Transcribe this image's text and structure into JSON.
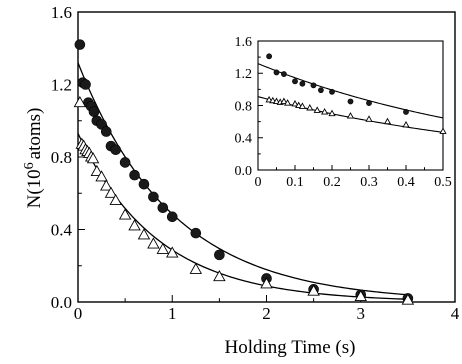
{
  "chart_data": [
    {
      "type": "scatter",
      "xlabel": "Holding Time (s)",
      "ylabel": "N(10",
      "ylabel_superscript": "6",
      "ylabel_unit": "atoms)",
      "xlim": [
        0,
        4
      ],
      "ylim": [
        0,
        1.6
      ],
      "xticks": [
        0,
        1,
        2,
        3,
        4
      ],
      "xtick_labels": [
        "0",
        "1",
        "2",
        "3",
        "4"
      ],
      "yticks": [
        0,
        0.4,
        0.8,
        1.2,
        1.6
      ],
      "ytick_labels": [
        "0.0",
        "0.4",
        "0.8",
        "1.2",
        "1.6"
      ],
      "grid": false,
      "series": [
        {
          "marker": "filled-circle",
          "x": [
            0.02,
            0.05,
            0.08,
            0.11,
            0.14,
            0.17,
            0.2,
            0.25,
            0.3,
            0.35,
            0.4,
            0.5,
            0.6,
            0.7,
            0.8,
            0.9,
            1.0,
            1.25,
            1.5,
            2.0,
            2.5,
            3.0,
            3.5
          ],
          "y": [
            1.42,
            1.21,
            1.2,
            1.1,
            1.08,
            1.05,
            1.0,
            0.98,
            0.94,
            0.86,
            0.84,
            0.77,
            0.7,
            0.65,
            0.58,
            0.52,
            0.47,
            0.38,
            0.26,
            0.13,
            0.07,
            0.04,
            0.02
          ],
          "fit": {
            "a": 1.32,
            "tau": 1.0
          }
        },
        {
          "marker": "open-triangle",
          "x": [
            0.02,
            0.04,
            0.06,
            0.08,
            0.1,
            0.12,
            0.14,
            0.16,
            0.2,
            0.25,
            0.3,
            0.35,
            0.4,
            0.5,
            0.6,
            0.7,
            0.8,
            0.9,
            1.0,
            1.25,
            1.5,
            2.0,
            2.5,
            3.0,
            3.5
          ],
          "y": [
            1.1,
            0.87,
            0.86,
            0.84,
            0.83,
            0.82,
            0.8,
            0.79,
            0.72,
            0.69,
            0.64,
            0.6,
            0.56,
            0.48,
            0.42,
            0.37,
            0.32,
            0.29,
            0.27,
            0.18,
            0.14,
            0.1,
            0.06,
            0.03,
            0.01
          ],
          "fit": {
            "a": 0.93,
            "tau": 0.85
          }
        }
      ]
    },
    {
      "type": "scatter",
      "role": "inset",
      "xlim": [
        0,
        0.5
      ],
      "ylim": [
        0,
        1.6
      ],
      "xticks": [
        0,
        0.1,
        0.2,
        0.3,
        0.4,
        0.5
      ],
      "xtick_labels": [
        "0",
        "0.1",
        "0.2",
        "0.3",
        "0.4",
        "0.5"
      ],
      "yticks": [
        0,
        0.4,
        0.8,
        1.2,
        1.6
      ],
      "ytick_labels": [
        "0.0",
        "0.4",
        "0.8",
        "1.2",
        "1.6"
      ],
      "series": [
        {
          "marker": "filled-circle",
          "x": [
            0.03,
            0.05,
            0.07,
            0.1,
            0.12,
            0.15,
            0.17,
            0.2,
            0.25,
            0.3,
            0.4
          ],
          "y": [
            1.41,
            1.21,
            1.19,
            1.1,
            1.07,
            1.05,
            0.99,
            0.97,
            0.85,
            0.83,
            0.72
          ],
          "fit": {
            "a": 1.32,
            "tau": 0.7
          }
        },
        {
          "marker": "open-triangle",
          "x": [
            0.03,
            0.04,
            0.05,
            0.06,
            0.07,
            0.08,
            0.1,
            0.11,
            0.12,
            0.14,
            0.16,
            0.18,
            0.2,
            0.25,
            0.3,
            0.35,
            0.4,
            0.5
          ],
          "y": [
            0.87,
            0.86,
            0.85,
            0.84,
            0.85,
            0.83,
            0.82,
            0.8,
            0.79,
            0.77,
            0.74,
            0.72,
            0.7,
            0.67,
            0.63,
            0.6,
            0.56,
            0.48
          ],
          "fit": {
            "a": 0.91,
            "tau": 0.75
          }
        }
      ]
    }
  ]
}
